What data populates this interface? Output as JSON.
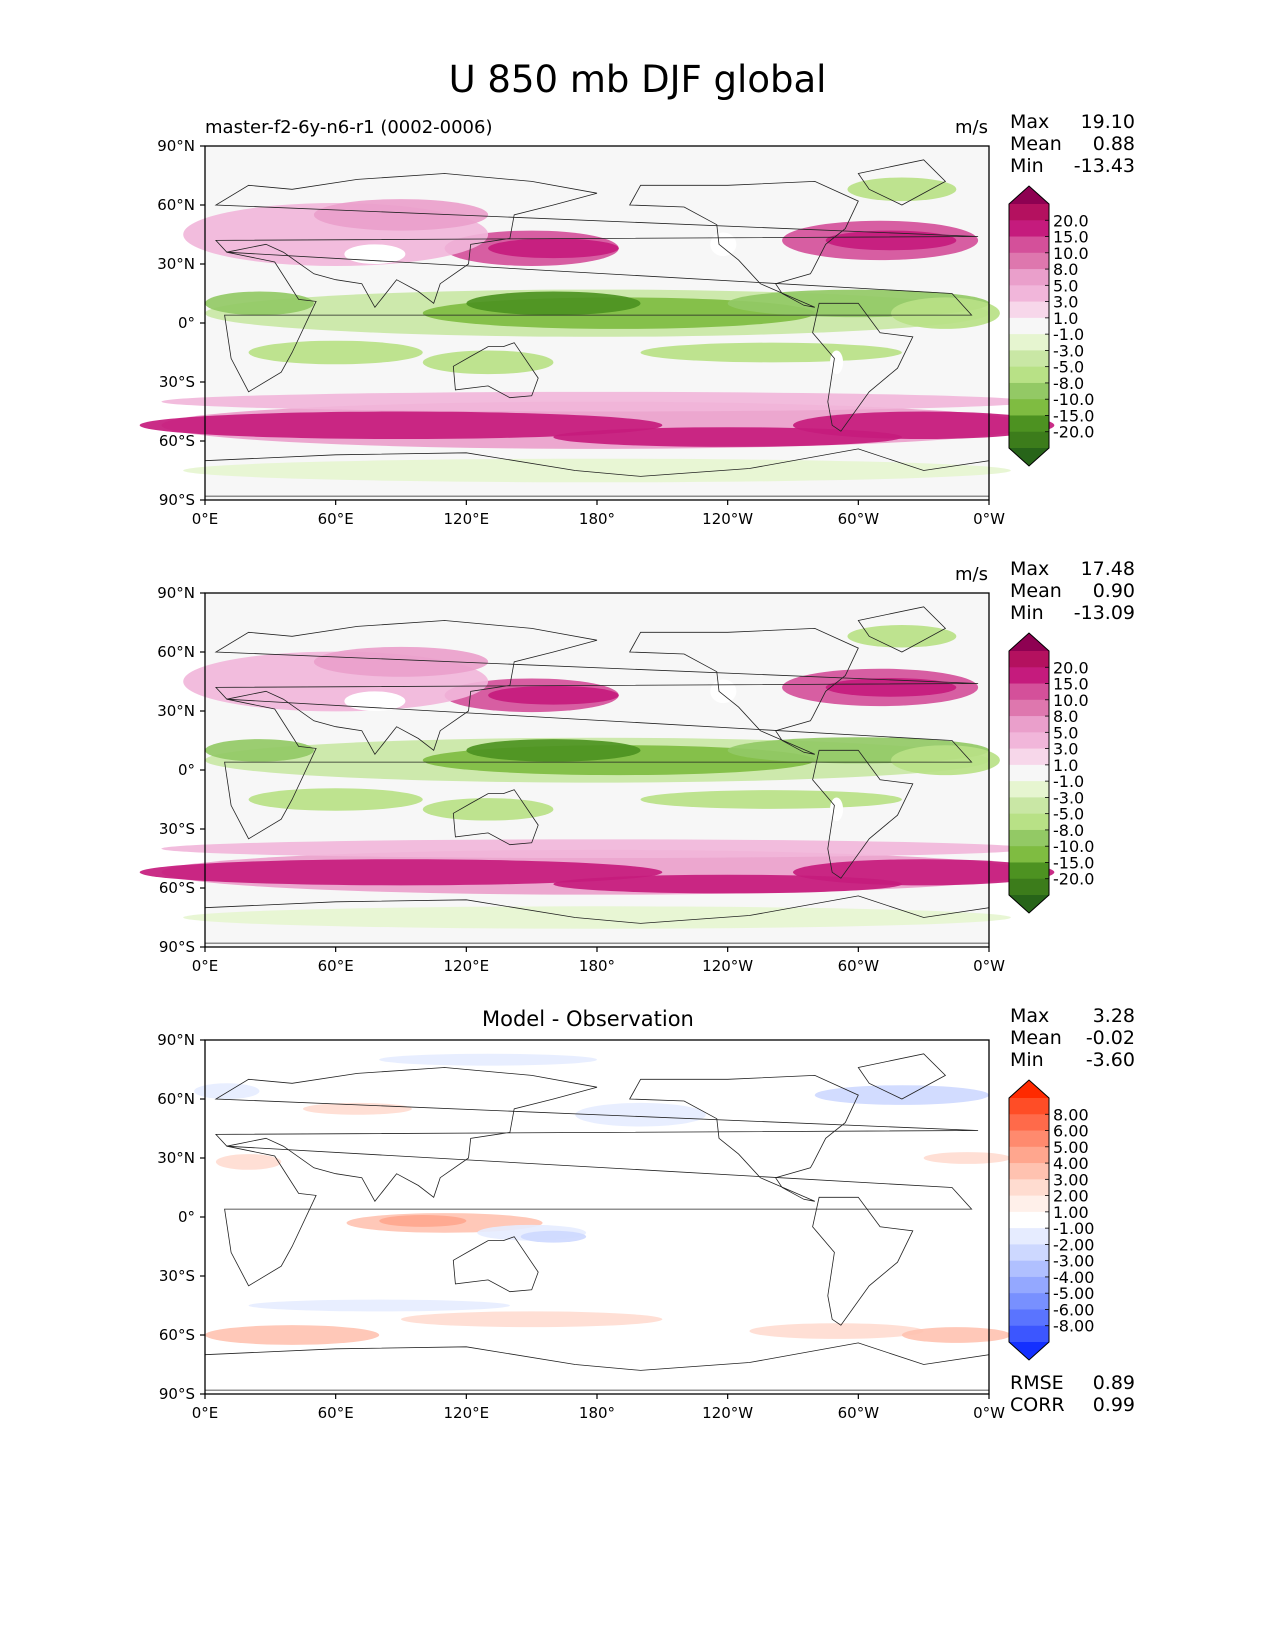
{
  "figure": {
    "title": "U 850 mb DJF global"
  },
  "xticks": [
    "0°E",
    "60°E",
    "120°E",
    "180°",
    "120°W",
    "60°W",
    "0°W"
  ],
  "yticks": [
    "90°N",
    "60°N",
    "30°N",
    "0°",
    "30°S",
    "60°S",
    "90°S"
  ],
  "panels": [
    {
      "left_title": "master-f2-6y-n6-r1 (0002-0006)",
      "center_title": "",
      "units": "m/s",
      "stats": [
        {
          "label": "Max",
          "value": "19.10"
        },
        {
          "label": "Mean",
          "value": "0.88"
        },
        {
          "label": "Min",
          "value": "-13.43"
        }
      ],
      "colorbar": {
        "labels": [
          "20.0",
          "15.0",
          "10.0",
          "8.0",
          "5.0",
          "3.0",
          "1.0",
          "-1.0",
          "-3.0",
          "-5.0",
          "-8.0",
          "-10.0",
          "-15.0",
          "-20.0"
        ],
        "colors": [
          "#8e0152",
          "#b4115f",
          "#c51b7d",
          "#d4509a",
          "#de77ae",
          "#ea9fcb",
          "#f1b6da",
          "#f7d7ea",
          "#f7f7f7",
          "#e6f5d0",
          "#c9e7a5",
          "#b8e186",
          "#93c965",
          "#7fbc41",
          "#4d9221",
          "#3c7c1b",
          "#276419"
        ]
      }
    },
    {
      "left_title": "",
      "center_title": "",
      "units": "m/s",
      "stats": [
        {
          "label": "Max",
          "value": "17.48"
        },
        {
          "label": "Mean",
          "value": "0.90"
        },
        {
          "label": "Min",
          "value": "-13.09"
        }
      ],
      "colorbar": {
        "labels": [
          "20.0",
          "15.0",
          "10.0",
          "8.0",
          "5.0",
          "3.0",
          "1.0",
          "-1.0",
          "-3.0",
          "-5.0",
          "-8.0",
          "-10.0",
          "-15.0",
          "-20.0"
        ],
        "colors": [
          "#8e0152",
          "#b4115f",
          "#c51b7d",
          "#d4509a",
          "#de77ae",
          "#ea9fcb",
          "#f1b6da",
          "#f7d7ea",
          "#f7f7f7",
          "#e6f5d0",
          "#c9e7a5",
          "#b8e186",
          "#93c965",
          "#7fbc41",
          "#4d9221",
          "#3c7c1b",
          "#276419"
        ]
      }
    },
    {
      "left_title": "",
      "center_title": "Model - Observation",
      "units": "",
      "stats": [
        {
          "label": "Max",
          "value": "3.28"
        },
        {
          "label": "Mean",
          "value": "-0.02"
        },
        {
          "label": "Min",
          "value": "-3.60"
        }
      ],
      "bottom_stats": [
        {
          "label": "RMSE",
          "value": "0.89"
        },
        {
          "label": "CORR",
          "value": "0.99"
        }
      ],
      "colorbar": {
        "labels": [
          "8.00",
          "6.00",
          "5.00",
          "4.00",
          "3.00",
          "2.00",
          "1.00",
          "-1.00",
          "-2.00",
          "-3.00",
          "-4.00",
          "-5.00",
          "-6.00",
          "-8.00"
        ],
        "colors": [
          "#ff2a00",
          "#ff4d26",
          "#ff6a4a",
          "#ff8a6e",
          "#ffa68e",
          "#ffc2b0",
          "#ffdcd0",
          "#fff0ea",
          "#ffffff",
          "#e6ecff",
          "#cdd8ff",
          "#b0c0ff",
          "#94a8ff",
          "#7890ff",
          "#5a74ff",
          "#3c56ff",
          "#1430ff"
        ]
      }
    }
  ],
  "chart_data": [
    {
      "type": "heatmap",
      "title": "master-f2-6y-n6-r1 (0002-0006)",
      "units": "m/s",
      "xlim": [
        0,
        360
      ],
      "ylim": [
        -90,
        90
      ],
      "xticks": [
        "0°E",
        "60°E",
        "120°E",
        "180°",
        "120°W",
        "60°W",
        "0°W"
      ],
      "yticks": [
        "90°N",
        "60°N",
        "30°N",
        "0°",
        "30°S",
        "60°S",
        "90°S"
      ],
      "levels": [
        -20,
        -15,
        -10,
        -8,
        -5,
        -3,
        -1,
        1,
        3,
        5,
        8,
        10,
        15,
        20
      ],
      "stats": {
        "max": 19.1,
        "mean": 0.88,
        "min": -13.43
      },
      "field": {
        "lat": [
          70,
          45,
          30,
          15,
          0,
          -15,
          -30,
          -50,
          -75
        ],
        "zonal_mean": [
          2,
          12,
          8,
          -6,
          -9,
          -4,
          5,
          16,
          0
        ]
      }
    },
    {
      "type": "heatmap",
      "title": "",
      "units": "m/s",
      "xlim": [
        0,
        360
      ],
      "ylim": [
        -90,
        90
      ],
      "xticks": [
        "0°E",
        "60°E",
        "120°E",
        "180°",
        "120°W",
        "60°W",
        "0°W"
      ],
      "yticks": [
        "90°N",
        "60°N",
        "30°N",
        "0°",
        "30°S",
        "60°S",
        "90°S"
      ],
      "levels": [
        -20,
        -15,
        -10,
        -8,
        -5,
        -3,
        -1,
        1,
        3,
        5,
        8,
        10,
        15,
        20
      ],
      "stats": {
        "max": 17.48,
        "mean": 0.9,
        "min": -13.09
      },
      "field": {
        "lat": [
          70,
          45,
          30,
          15,
          0,
          -15,
          -30,
          -50,
          -75
        ],
        "zonal_mean": [
          2,
          11,
          7,
          -7,
          -10,
          -4,
          5,
          15,
          0
        ]
      }
    },
    {
      "type": "heatmap",
      "title": "Model - Observation",
      "units": "",
      "xlim": [
        0,
        360
      ],
      "ylim": [
        -90,
        90
      ],
      "xticks": [
        "0°E",
        "60°E",
        "120°E",
        "180°",
        "120°W",
        "60°W",
        "0°W"
      ],
      "yticks": [
        "90°N",
        "60°N",
        "30°N",
        "0°",
        "30°S",
        "60°S",
        "90°S"
      ],
      "levels": [
        -8,
        -6,
        -5,
        -4,
        -3,
        -2,
        -1,
        1,
        2,
        3,
        4,
        5,
        6,
        8
      ],
      "stats": {
        "max": 3.28,
        "mean": -0.02,
        "min": -3.6,
        "rmse": 0.89,
        "corr": 0.99
      }
    }
  ]
}
